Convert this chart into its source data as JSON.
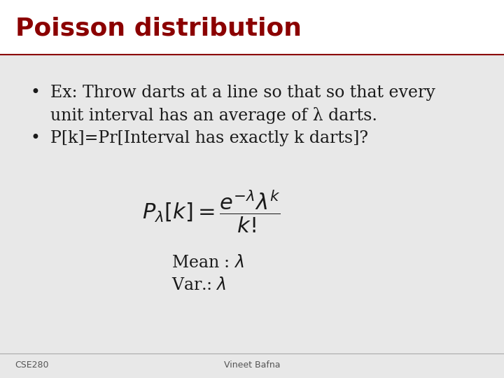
{
  "title": "Poisson distribution",
  "title_color": "#8B0000",
  "title_fontsize": 26,
  "bg_color": "#E8E8E8",
  "bullet1_line1": "Ex: Throw darts at a line so that so that every",
  "bullet1_line2": "unit interval has an average of λ darts.",
  "bullet2": "P[k]=Pr[Interval has exactly k darts]?",
  "formula": "$P_{\\lambda}[k] = \\dfrac{e^{-\\lambda}\\lambda^{k}}{k!}$",
  "mean_text": "Mean : $\\lambda$",
  "var_text": "Var.: $\\lambda$",
  "footer_left": "CSE280",
  "footer_center": "Vineet Bafna",
  "separator_color": "#8B0000",
  "text_color": "#1a1a1a",
  "bullet_color": "#1a1a1a",
  "footer_color": "#555555",
  "formula_fontsize": 22,
  "bullet_fontsize": 17,
  "mean_var_fontsize": 17
}
